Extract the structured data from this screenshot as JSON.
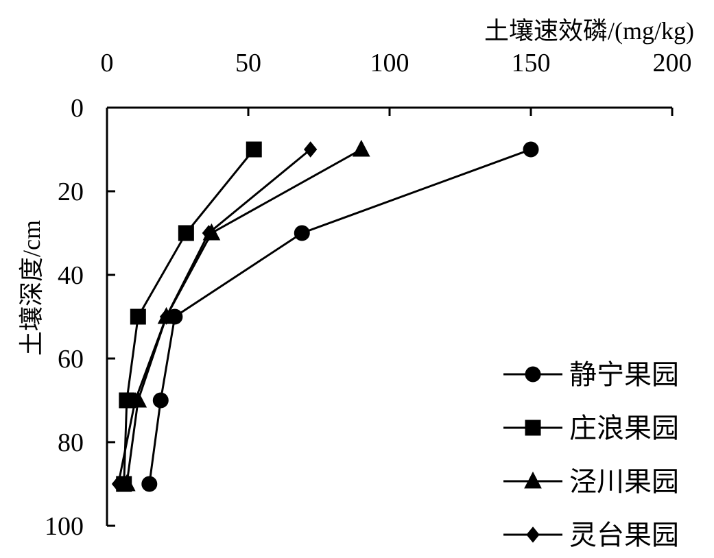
{
  "chart_data": {
    "type": "line",
    "xlabel": "土壤速效磷/(mg/kg)",
    "ylabel": "土壤深度/cm",
    "xlim": [
      0,
      200
    ],
    "ylim": [
      0,
      100
    ],
    "x_axis_position": "top",
    "y_axis_inverted": true,
    "x_ticks": [
      "0",
      "50",
      "100",
      "150",
      "200"
    ],
    "y_ticks": [
      "0",
      "20",
      "40",
      "60",
      "80",
      "100"
    ],
    "grid": false,
    "legend_position": "bottom-right",
    "series": [
      {
        "name": "静宁果园",
        "marker": "circle",
        "points": [
          {
            "x": 150,
            "y": 10
          },
          {
            "x": 69,
            "y": 30
          },
          {
            "x": 24,
            "y": 50
          },
          {
            "x": 19,
            "y": 70
          },
          {
            "x": 15,
            "y": 90
          }
        ]
      },
      {
        "name": "庄浪果园",
        "marker": "square",
        "points": [
          {
            "x": 52,
            "y": 10
          },
          {
            "x": 28,
            "y": 30
          },
          {
            "x": 11,
            "y": 50
          },
          {
            "x": 7,
            "y": 70
          },
          {
            "x": 6,
            "y": 90
          }
        ]
      },
      {
        "name": "泾川果园",
        "marker": "triangle",
        "points": [
          {
            "x": 90,
            "y": 10
          },
          {
            "x": 37,
            "y": 30
          },
          {
            "x": 21,
            "y": 50
          },
          {
            "x": 11,
            "y": 70
          },
          {
            "x": 7,
            "y": 90
          }
        ]
      },
      {
        "name": "灵台果园",
        "marker": "diamond",
        "points": [
          {
            "x": 72,
            "y": 10
          },
          {
            "x": 36,
            "y": 30
          },
          {
            "x": 21,
            "y": 50
          },
          {
            "x": 10,
            "y": 70
          },
          {
            "x": 4,
            "y": 90
          }
        ]
      }
    ]
  }
}
